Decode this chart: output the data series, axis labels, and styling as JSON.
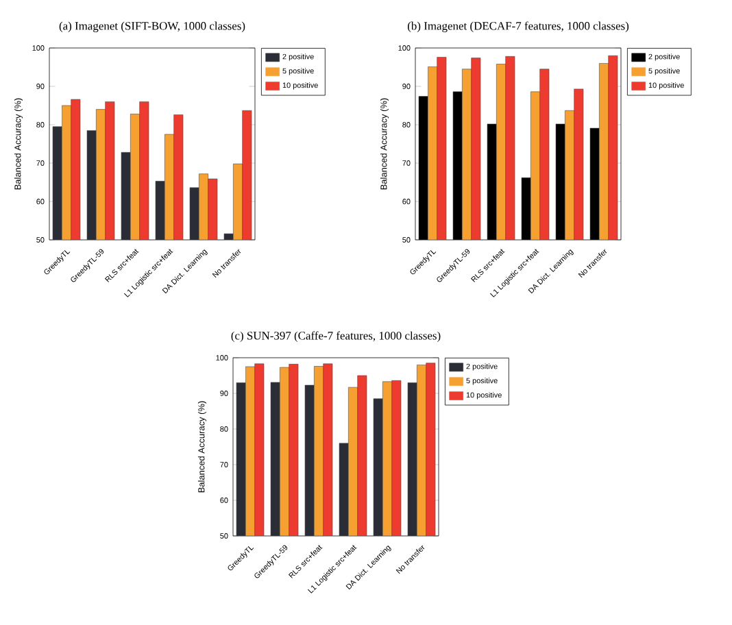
{
  "chart_data": [
    {
      "type": "bar",
      "title": "(a) Imagenet (SIFT-BOW, 1000 classes)",
      "ylabel": "Balanced Accuracy (%)",
      "categories": [
        "GreedyTL",
        "GreedyTL-59",
        "RLS src+feat",
        "L1 Logistic src+feat",
        "DA Dict. Learning",
        "No transfer"
      ],
      "series": [
        {
          "name": "2 positive",
          "color": "#2b2d36",
          "values": [
            79.5,
            78.5,
            72.8,
            65.3,
            63.6,
            51.6
          ]
        },
        {
          "name": "5 positive",
          "color": "#f5a030",
          "values": [
            85,
            84,
            82.8,
            77.5,
            67.2,
            69.8
          ]
        },
        {
          "name": "10 positive",
          "color": "#ee3b2f",
          "values": [
            86.6,
            86,
            86,
            82.6,
            65.9,
            83.7
          ]
        }
      ],
      "ylim": [
        50,
        100
      ],
      "yticks": [
        50,
        60,
        70,
        80,
        90,
        100
      ],
      "legend": "right"
    },
    {
      "type": "bar",
      "title": "(b) Imagenet (DECAF-7 features, 1000 classes)",
      "ylabel": "Balanced Accuracy (%)",
      "categories": [
        "GreedyTL",
        "GreedyTL-59",
        "RLS src+feat",
        "L1 Logistic src+feat",
        "DA Dict. Learning",
        "No transfer"
      ],
      "series": [
        {
          "name": "2 positive",
          "color": "#000000",
          "values": [
            87.4,
            88.6,
            80.2,
            66.2,
            80.2,
            79.1
          ]
        },
        {
          "name": "5 positive",
          "color": "#f5a030",
          "values": [
            95.1,
            94.5,
            95.8,
            88.6,
            83.7,
            96
          ]
        },
        {
          "name": "10 positive",
          "color": "#ee3b2f",
          "values": [
            97.6,
            97.4,
            97.8,
            94.5,
            89.3,
            98
          ]
        }
      ],
      "ylim": [
        50,
        100
      ],
      "yticks": [
        50,
        60,
        70,
        80,
        90,
        100
      ],
      "legend": "right"
    },
    {
      "type": "bar",
      "title": "(c) SUN-397 (Caffe-7 features, 1000 classes)",
      "ylabel": "Balanced Accuracy (%)",
      "categories": [
        "GreedyTL",
        "GreedyTL-59",
        "RLS src+feat",
        "L1 Logistic src+feat",
        "DA Dict. Learning",
        "No transfer"
      ],
      "series": [
        {
          "name": "2 positive",
          "color": "#2b2d36",
          "values": [
            93,
            93.1,
            92.3,
            76,
            88.5,
            93
          ]
        },
        {
          "name": "5 positive",
          "color": "#f5a030",
          "values": [
            97.5,
            97.3,
            97.6,
            91.7,
            93.3,
            98
          ]
        },
        {
          "name": "10 positive",
          "color": "#ee3b2f",
          "values": [
            98.3,
            98.2,
            98.3,
            95,
            93.6,
            98.5
          ]
        }
      ],
      "ylim": [
        50,
        100
      ],
      "yticks": [
        50,
        60,
        70,
        80,
        90,
        100
      ],
      "legend": "right"
    }
  ]
}
